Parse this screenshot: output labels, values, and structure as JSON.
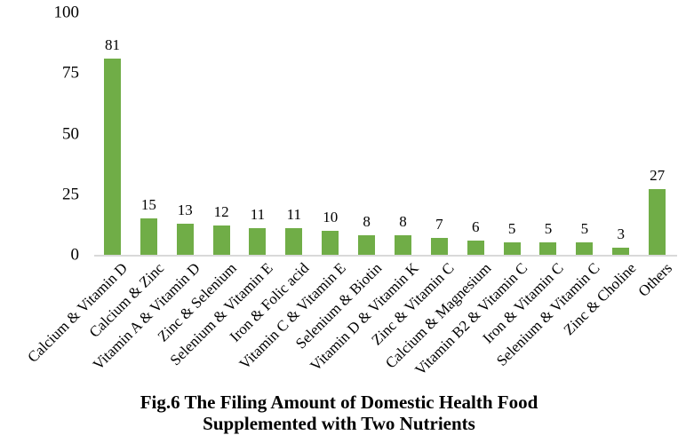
{
  "chart_data": {
    "type": "bar",
    "title": "Fig.6 The Filing Amount of Domestic Health Food Supplemented with Two Nutrients",
    "title_lines": [
      "Fig.6 The Filing Amount of Domestic Health Food",
      "Supplemented with Two Nutrients"
    ],
    "categories": [
      "Calcium & Vitamin D",
      "Calcium & Zinc",
      "Vitamin A & Vitamin D",
      "Zinc & Selenium",
      "Selenium & Vitamin E",
      "Iron & Folic acid",
      "Vitamin C & Vitamin E",
      "Selenium & Biotin",
      "Vitamin D & Vitamin K",
      "Zinc & Vitamin C",
      "Calcium & Magnesium",
      "Vitamin B2 & Vitamin C",
      "Iron & Vitamin C",
      "Selenium & Vitamin C",
      "Zinc & Choline",
      "Others"
    ],
    "values": [
      81,
      15,
      13,
      12,
      11,
      11,
      10,
      8,
      8,
      7,
      6,
      5,
      5,
      5,
      3,
      27
    ],
    "xlabel": "",
    "ylabel": "",
    "ylim": [
      0,
      100
    ],
    "yticks": [
      0,
      25,
      50,
      75,
      100
    ],
    "x_label_rotation_deg": -45,
    "data_labels": true,
    "grid": false,
    "legend": "none",
    "colors": {
      "bar": "#70AD47",
      "axis_line": "#D9D9D9",
      "text": "#000000",
      "background": "#FFFFFF"
    }
  }
}
